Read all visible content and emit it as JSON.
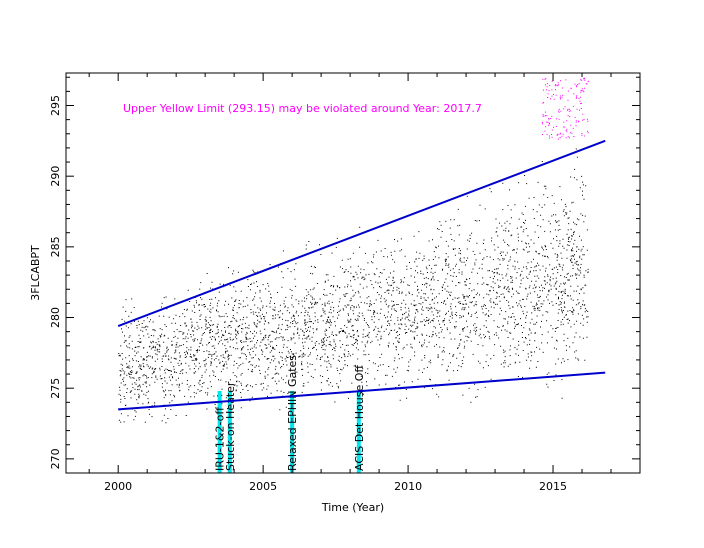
{
  "colors": {
    "background": "#ffffff",
    "data": "#000000",
    "violation": "#ff00ff",
    "trend": "#0000cc",
    "event": "#00e5ee",
    "annotation": "#ff00ff"
  },
  "chart_data": {
    "type": "scatter",
    "title": "",
    "xlabel": "Time (Year)",
    "ylabel": "3FLCABPT",
    "xlim": [
      1998.2,
      2018.0
    ],
    "ylim": [
      269.0,
      297.3
    ],
    "xticks": [
      2000,
      2005,
      2010,
      2015
    ],
    "yticks": [
      270,
      275,
      280,
      285,
      290,
      295
    ],
    "grid": false,
    "legend": "none",
    "annotation": "Upper Yellow  Limit (293.15) may be violated around Year: 2017.7",
    "yellow_upper_limit": 293.15,
    "violation_year": 2017.7,
    "data_range": [
      2000.0,
      2016.2
    ],
    "series": [
      {
        "style": "dense-points",
        "envelope": [
          {
            "year": 2000.0,
            "low": 272.5,
            "center": 276.5,
            "high": 282.0
          },
          {
            "year": 2002.0,
            "low": 272.5,
            "center": 277.5,
            "high": 283.0
          },
          {
            "year": 2004.0,
            "low": 273.0,
            "center": 278.5,
            "high": 284.0
          },
          {
            "year": 2006.0,
            "low": 273.5,
            "center": 279.0,
            "high": 285.0
          },
          {
            "year": 2008.0,
            "low": 274.0,
            "center": 280.0,
            "high": 286.5
          },
          {
            "year": 2010.0,
            "low": 274.0,
            "center": 280.5,
            "high": 287.0
          },
          {
            "year": 2012.0,
            "low": 273.5,
            "center": 281.5,
            "high": 289.0
          },
          {
            "year": 2014.0,
            "low": 274.0,
            "center": 282.5,
            "high": 291.0
          },
          {
            "year": 2016.2,
            "low": 274.5,
            "center": 283.5,
            "high": 293.0
          }
        ]
      },
      {
        "style": "trend-line",
        "points": [
          [
            2000.0,
            279.4
          ],
          [
            2016.8,
            292.5
          ]
        ]
      },
      {
        "style": "trend-line",
        "points": [
          [
            2000.0,
            273.5
          ],
          [
            2016.8,
            276.1
          ]
        ]
      }
    ],
    "events": [
      {
        "year": 2003.5,
        "label": "IRU-1&2-off"
      },
      {
        "year": 2003.85,
        "label": "Stuck-on Heater"
      },
      {
        "year": 2006.0,
        "label": "Relaxed EPHIN Gates"
      },
      {
        "year": 2008.3,
        "label": "ACIS Det House Off"
      }
    ]
  }
}
